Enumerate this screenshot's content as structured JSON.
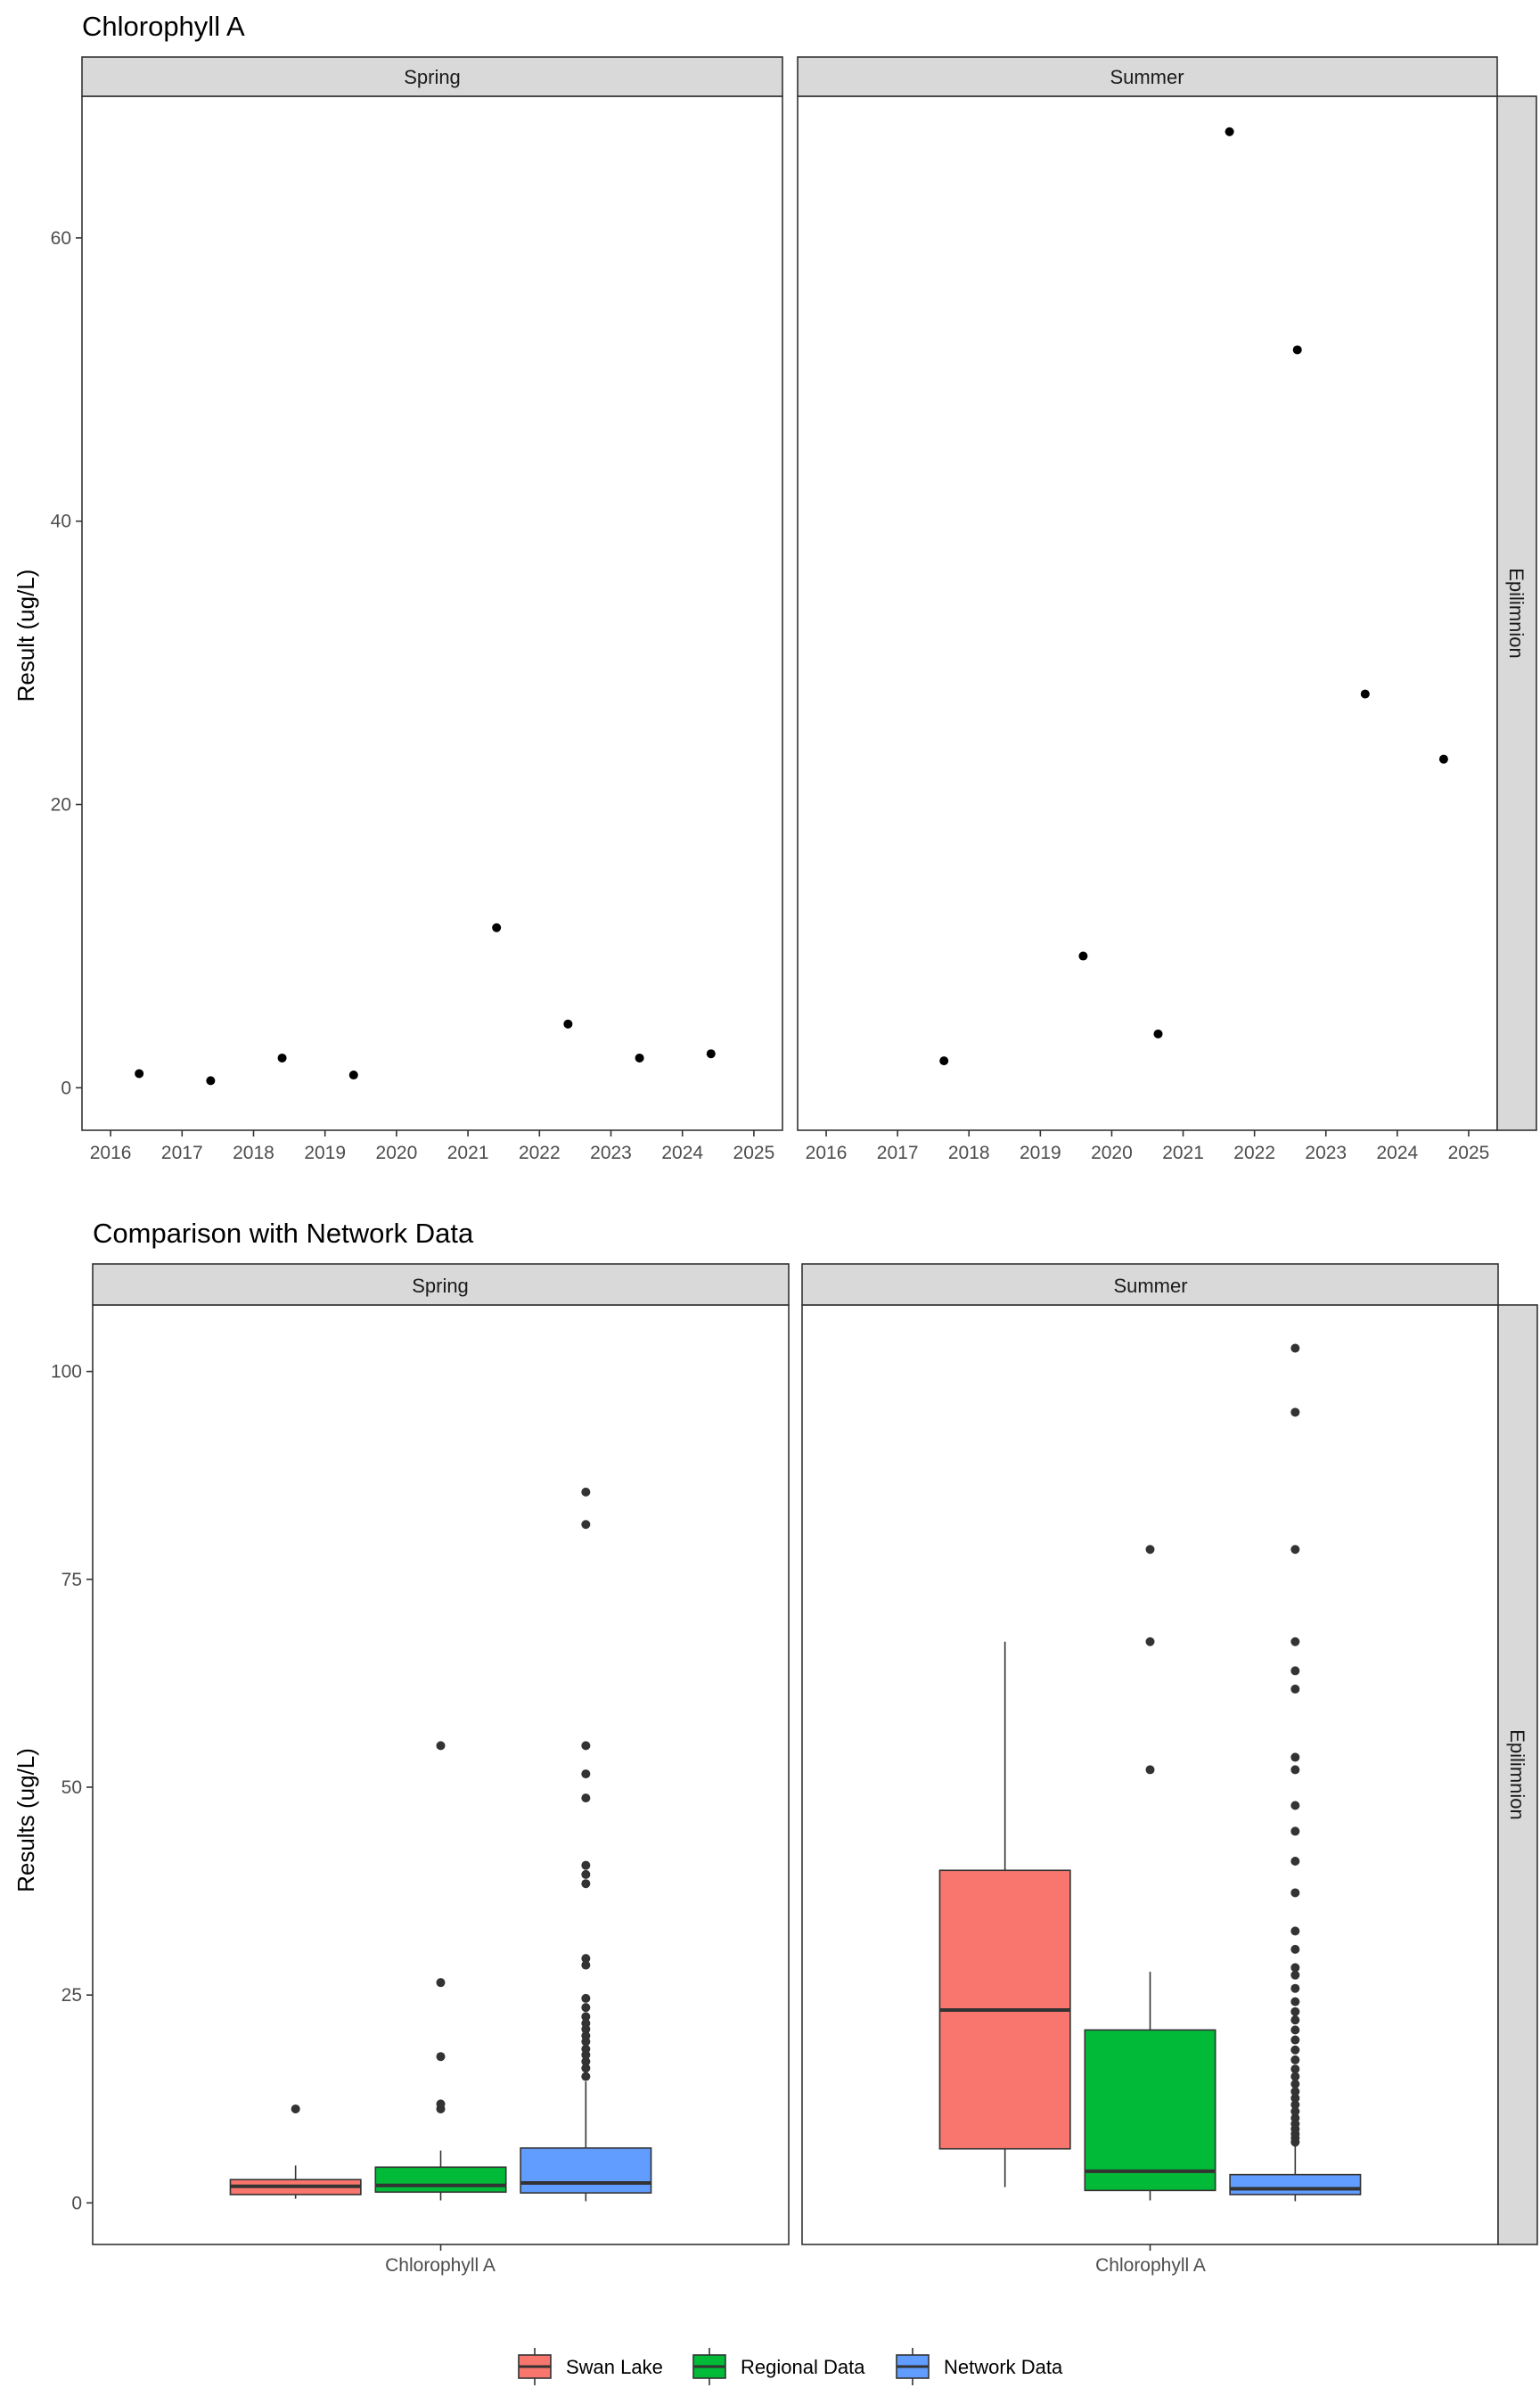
{
  "chart_data": [
    {
      "type": "scatter",
      "title": "Chlorophyll A",
      "ylabel": "Result (ug/L)",
      "xlabel": "",
      "x_ticks": [
        "2016",
        "2017",
        "2018",
        "2019",
        "2020",
        "2021",
        "2022",
        "2023",
        "2024",
        "2025"
      ],
      "y_ticks": [
        "0",
        "20",
        "40",
        "60"
      ],
      "xlim": [
        2015.6,
        2025.4
      ],
      "ylim": [
        -3,
        70
      ],
      "grid": true,
      "row_strip": "Epilimnion",
      "facets": [
        {
          "strip": "Spring",
          "points": [
            {
              "x": 2016.4,
              "y": 1.0
            },
            {
              "x": 2017.4,
              "y": 0.5
            },
            {
              "x": 2018.4,
              "y": 2.1
            },
            {
              "x": 2019.4,
              "y": 0.9
            },
            {
              "x": 2021.4,
              "y": 11.3
            },
            {
              "x": 2022.4,
              "y": 4.5
            },
            {
              "x": 2023.4,
              "y": 2.1
            },
            {
              "x": 2024.4,
              "y": 2.4
            }
          ]
        },
        {
          "strip": "Summer",
          "points": [
            {
              "x": 2017.65,
              "y": 1.9
            },
            {
              "x": 2019.6,
              "y": 9.3
            },
            {
              "x": 2020.65,
              "y": 3.8
            },
            {
              "x": 2021.65,
              "y": 67.5
            },
            {
              "x": 2022.6,
              "y": 52.1
            },
            {
              "x": 2023.55,
              "y": 27.8
            },
            {
              "x": 2024.65,
              "y": 23.2
            }
          ]
        }
      ]
    },
    {
      "type": "box",
      "title": "Comparison with Network Data",
      "ylabel": "Results (ug/L)",
      "xlabel": "",
      "category": "Chlorophyll A",
      "y_ticks": [
        "0",
        "25",
        "50",
        "75",
        "100"
      ],
      "ylim": [
        -5,
        108
      ],
      "grid": true,
      "row_strip": "Epilimnion",
      "legend_position": "bottom",
      "legend": [
        {
          "name": "Swan Lake",
          "color": "#F8766D"
        },
        {
          "name": "Regional Data",
          "color": "#00BA38"
        },
        {
          "name": "Network Data",
          "color": "#619CFF"
        }
      ],
      "facets": [
        {
          "strip": "Spring",
          "boxes": [
            {
              "series": "Swan Lake",
              "min": 0.5,
              "q1": 1.0,
              "median": 2.0,
              "q3": 2.8,
              "max": 4.5,
              "outliers": [
                11.3
              ]
            },
            {
              "series": "Regional Data",
              "min": 0.3,
              "q1": 1.3,
              "median": 2.1,
              "q3": 4.3,
              "max": 6.3,
              "outliers": [
                11.3,
                11.9,
                17.6,
                26.5,
                55.0
              ]
            },
            {
              "series": "Network Data",
              "min": 0.2,
              "q1": 1.2,
              "median": 2.4,
              "q3": 6.6,
              "max": 14.6,
              "outliers": [
                15.2,
                16.2,
                17.0,
                17.8,
                18.5,
                19.4,
                20.1,
                20.9,
                21.6,
                22.4,
                23.5,
                24.6,
                28.6,
                29.4,
                38.4,
                39.5,
                40.6,
                48.7,
                51.6,
                55.0,
                81.6,
                85.5
              ]
            }
          ]
        },
        {
          "strip": "Summer",
          "boxes": [
            {
              "series": "Swan Lake",
              "min": 1.9,
              "q1": 6.5,
              "median": 23.2,
              "q3": 40.0,
              "max": 67.5,
              "outliers": []
            },
            {
              "series": "Regional Data",
              "min": 0.3,
              "q1": 1.5,
              "median": 3.8,
              "q3": 20.8,
              "max": 27.8,
              "outliers": [
                52.1,
                67.5,
                78.6
              ]
            },
            {
              "series": "Network Data",
              "min": 0.2,
              "q1": 1.0,
              "median": 1.7,
              "q3": 3.4,
              "max": 7.0,
              "outliers": [
                7.3,
                7.8,
                8.3,
                8.9,
                9.5,
                10.2,
                11.0,
                11.8,
                12.6,
                13.4,
                14.3,
                15.2,
                16.1,
                17.2,
                18.4,
                19.6,
                20.8,
                22.0,
                23.0,
                24.2,
                25.8,
                27.4,
                28.3,
                30.5,
                32.7,
                37.3,
                41.1,
                44.7,
                47.8,
                52.1,
                53.6,
                61.8,
                64.0,
                67.5,
                78.6,
                95.1,
                102.8
              ]
            }
          ]
        }
      ]
    }
  ]
}
